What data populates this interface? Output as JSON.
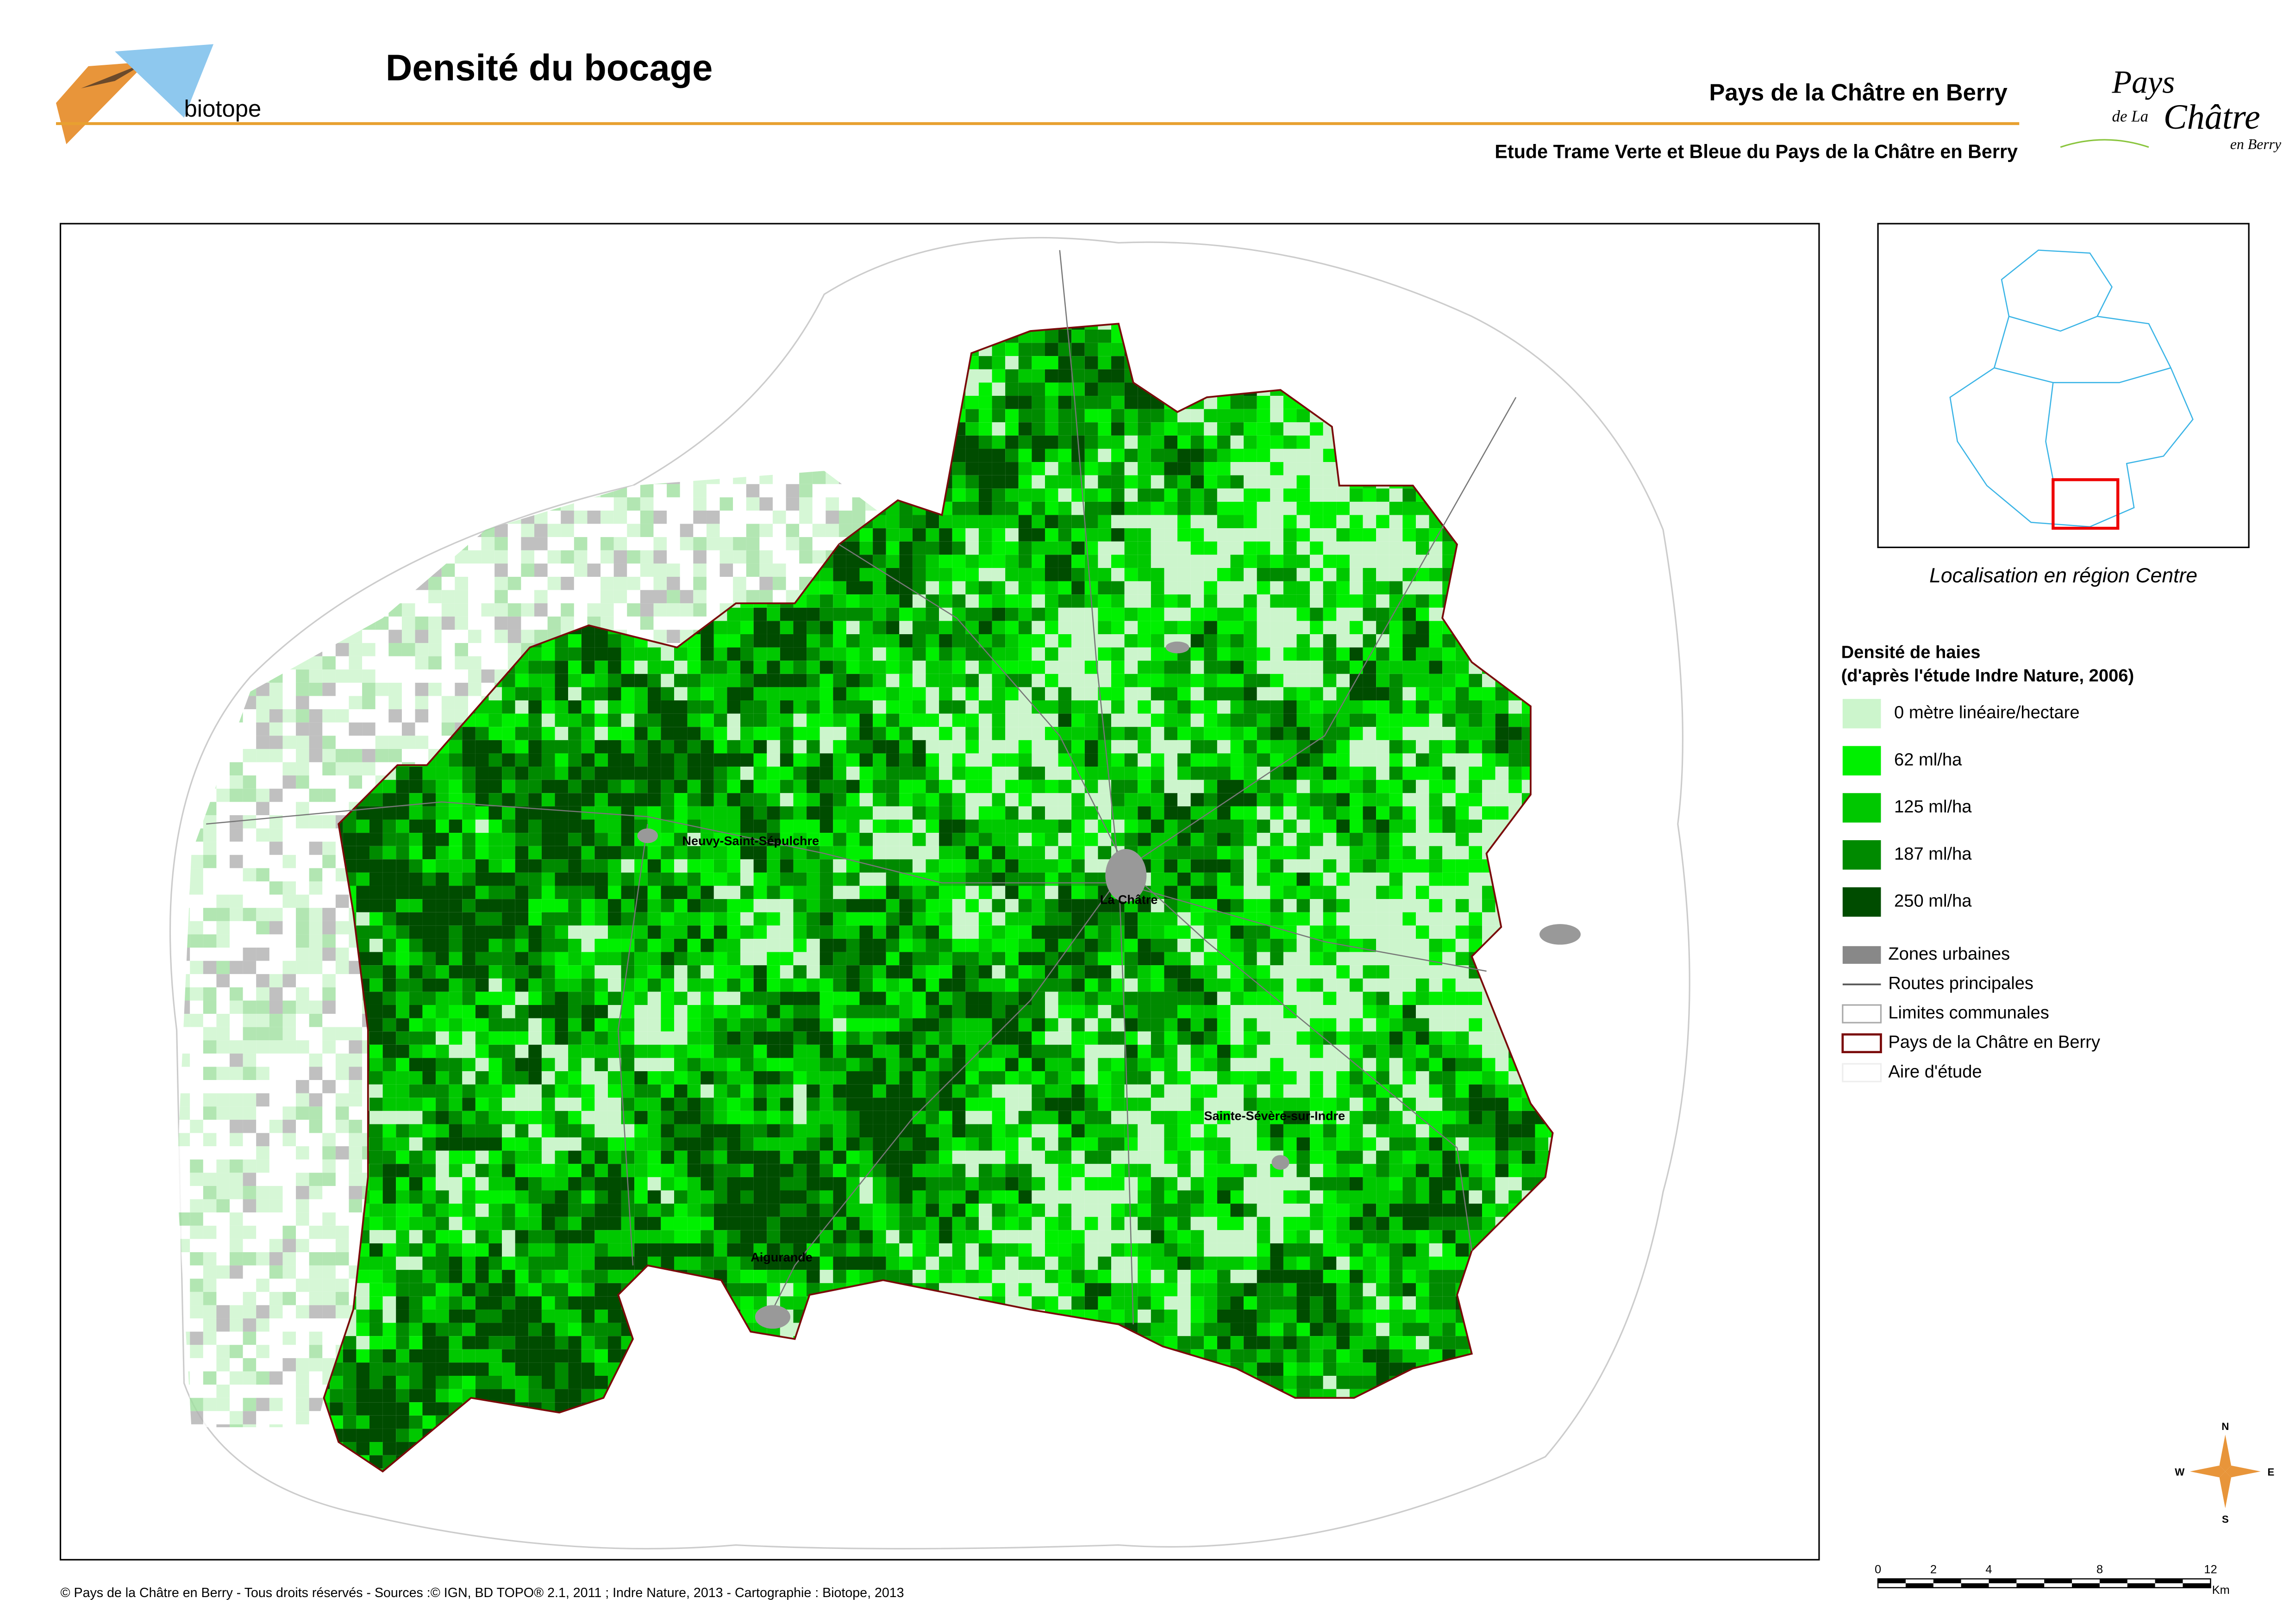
{
  "header": {
    "title": "Densité du bocage",
    "region": "Pays de la Châtre en Berry",
    "subtitle": "Etude Trame Verte et Bleue du Pays de la Châtre en Berry"
  },
  "logos": {
    "biotope": "biotope",
    "pays": [
      "Pays",
      "de La",
      "Châtre",
      "en Berry"
    ]
  },
  "map": {
    "places": [
      "Neuvy-Saint-Sépulchre",
      "La Châtre",
      "Sainte-Sévère-sur-Indre",
      "Aigurande"
    ]
  },
  "inset": {
    "caption": "Localisation en région Centre"
  },
  "legend": {
    "title": "Densité de haies",
    "subtitle": "(d'après l'étude Indre Nature, 2006)",
    "density": [
      {
        "label": "0 mètre linéaire/hectare",
        "color": "#ccf5cc"
      },
      {
        "label": "62 ml/ha",
        "color": "#00f000"
      },
      {
        "label": "125 ml/ha",
        "color": "#00c800"
      },
      {
        "label": "187 ml/ha",
        "color": "#008a00"
      },
      {
        "label": "250 ml/ha",
        "color": "#004c00"
      }
    ],
    "layers": [
      "Zones urbaines",
      "Routes principales",
      "Limites communales",
      "Pays de la Châtre en Berry",
      "Aire d'étude"
    ]
  },
  "compass": [
    "N",
    "W",
    "E",
    "S"
  ],
  "scale": {
    "ticks": [
      "0",
      "2",
      "4",
      "8",
      "12"
    ],
    "unit": "Km"
  },
  "footer": "© Pays de la Châtre en Berry - Tous droits réservés - Sources :© IGN, BD TOPO® 2.1, 2011 ; Indre Nature, 2013 -  Cartographie : Biotope, 2013"
}
